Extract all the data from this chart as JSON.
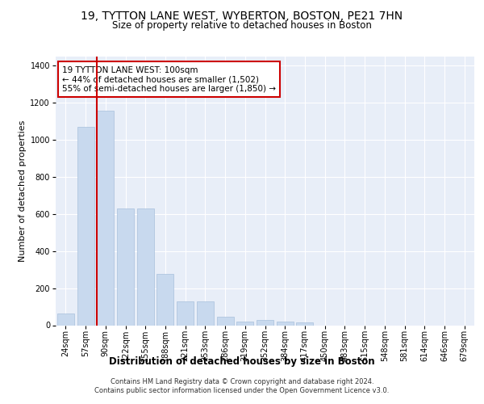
{
  "title": "19, TYTTON LANE WEST, WYBERTON, BOSTON, PE21 7HN",
  "subtitle": "Size of property relative to detached houses in Boston",
  "xlabel": "Distribution of detached houses by size in Boston",
  "ylabel": "Number of detached properties",
  "categories": [
    "24sqm",
    "57sqm",
    "90sqm",
    "122sqm",
    "155sqm",
    "188sqm",
    "221sqm",
    "253sqm",
    "286sqm",
    "319sqm",
    "352sqm",
    "384sqm",
    "417sqm",
    "450sqm",
    "483sqm",
    "515sqm",
    "548sqm",
    "581sqm",
    "614sqm",
    "646sqm",
    "679sqm"
  ],
  "values": [
    65,
    1070,
    1160,
    630,
    630,
    275,
    130,
    130,
    45,
    20,
    30,
    20,
    15,
    0,
    0,
    0,
    0,
    0,
    0,
    0,
    0
  ],
  "bar_color": "#c8d9ee",
  "bar_edgecolor": "#a8c0dc",
  "vline_color": "#cc0000",
  "annotation_text": "19 TYTTON LANE WEST: 100sqm\n← 44% of detached houses are smaller (1,502)\n55% of semi-detached houses are larger (1,850) →",
  "annotation_box_color": "#ffffff",
  "annotation_box_edgecolor": "#cc0000",
  "ylim": [
    0,
    1450
  ],
  "yticks": [
    0,
    200,
    400,
    600,
    800,
    1000,
    1200,
    1400
  ],
  "bg_color": "#e8eef8",
  "footer": "Contains HM Land Registry data © Crown copyright and database right 2024.\nContains public sector information licensed under the Open Government Licence v3.0.",
  "title_fontsize": 10,
  "subtitle_fontsize": 8.5,
  "xlabel_fontsize": 8.5,
  "ylabel_fontsize": 8,
  "tick_fontsize": 7,
  "annotation_fontsize": 7.5,
  "footer_fontsize": 6
}
